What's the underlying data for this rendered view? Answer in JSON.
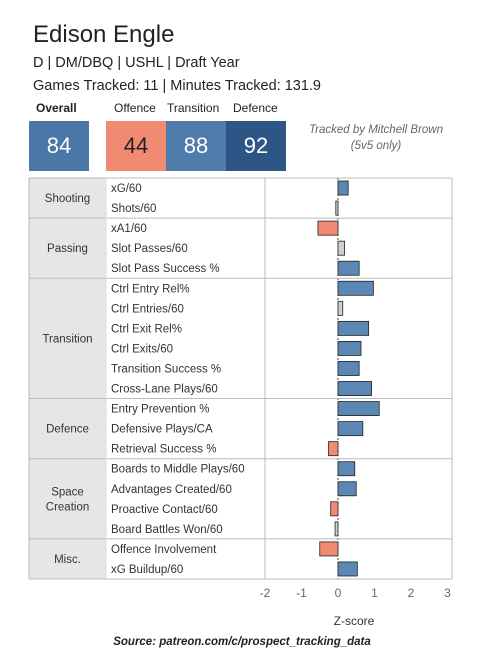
{
  "header": {
    "player_name": "Edison Engle",
    "info_line": "D | DM/DBQ | USHL | Draft Year",
    "tracking_line": "Games Tracked: 11 | Minutes Tracked: 131.9"
  },
  "scores": {
    "overall_label": "Overall",
    "offence_label": "Offence",
    "transition_label": "Transition",
    "defence_label": "Defence",
    "overall": "84",
    "offence": "44",
    "transition": "88",
    "defence": "92"
  },
  "tracked_note": {
    "line1": "Tracked by Mitchell Brown",
    "line2": "(5v5 only)"
  },
  "colors": {
    "positive": "#5b87b4",
    "negative": "#f08a72",
    "neutral": "#cfcfcf",
    "category_bg": "#e6e6e6"
  },
  "chart_data": {
    "type": "bar",
    "orientation": "horizontal",
    "xlabel": "Z-score",
    "xlim": [
      -2.6,
      3.2
    ],
    "xticks": [
      -2,
      -1,
      0,
      1,
      2,
      3
    ],
    "xtick_labels": [
      "-2",
      "-1",
      "0",
      "1",
      "2",
      "3"
    ],
    "groups": [
      {
        "name": "Shooting",
        "metrics": [
          {
            "label": "xG/60",
            "value": 0.28
          },
          {
            "label": "Shots/60",
            "value": -0.06
          }
        ]
      },
      {
        "name": "Passing",
        "metrics": [
          {
            "label": "xA1/60",
            "value": -0.55
          },
          {
            "label": "Slot Passes/60",
            "value": 0.18
          },
          {
            "label": "Slot Pass Success %",
            "value": 0.58
          }
        ]
      },
      {
        "name": "Transition",
        "metrics": [
          {
            "label": "Ctrl Entry Rel%",
            "value": 0.97
          },
          {
            "label": "Ctrl Entries/60",
            "value": 0.13
          },
          {
            "label": "Ctrl Exit Rel%",
            "value": 0.84
          },
          {
            "label": "Ctrl Exits/60",
            "value": 0.63
          },
          {
            "label": "Transition Success %",
            "value": 0.58
          },
          {
            "label": "Cross-Lane Plays/60",
            "value": 0.92
          }
        ]
      },
      {
        "name": "Defence",
        "metrics": [
          {
            "label": "Entry Prevention %",
            "value": 1.13
          },
          {
            "label": "Defensive Plays/CA",
            "value": 0.68
          },
          {
            "label": "Retrieval Success %",
            "value": -0.26
          }
        ]
      },
      {
        "name": "Space Creation",
        "metrics": [
          {
            "label": "Boards to Middle Plays/60",
            "value": 0.46
          },
          {
            "label": "Advantages Created/60",
            "value": 0.5
          },
          {
            "label": "Proactive Contact/60",
            "value": -0.2
          },
          {
            "label": "Board Battles Won/60",
            "value": -0.08
          }
        ]
      },
      {
        "name": "Misc.",
        "metrics": [
          {
            "label": "Offence Involvement",
            "value": -0.5
          },
          {
            "label": "xG Buildup/60",
            "value": 0.53
          }
        ]
      }
    ]
  },
  "source": "Source: patreon.com/c/prospect_tracking_data"
}
